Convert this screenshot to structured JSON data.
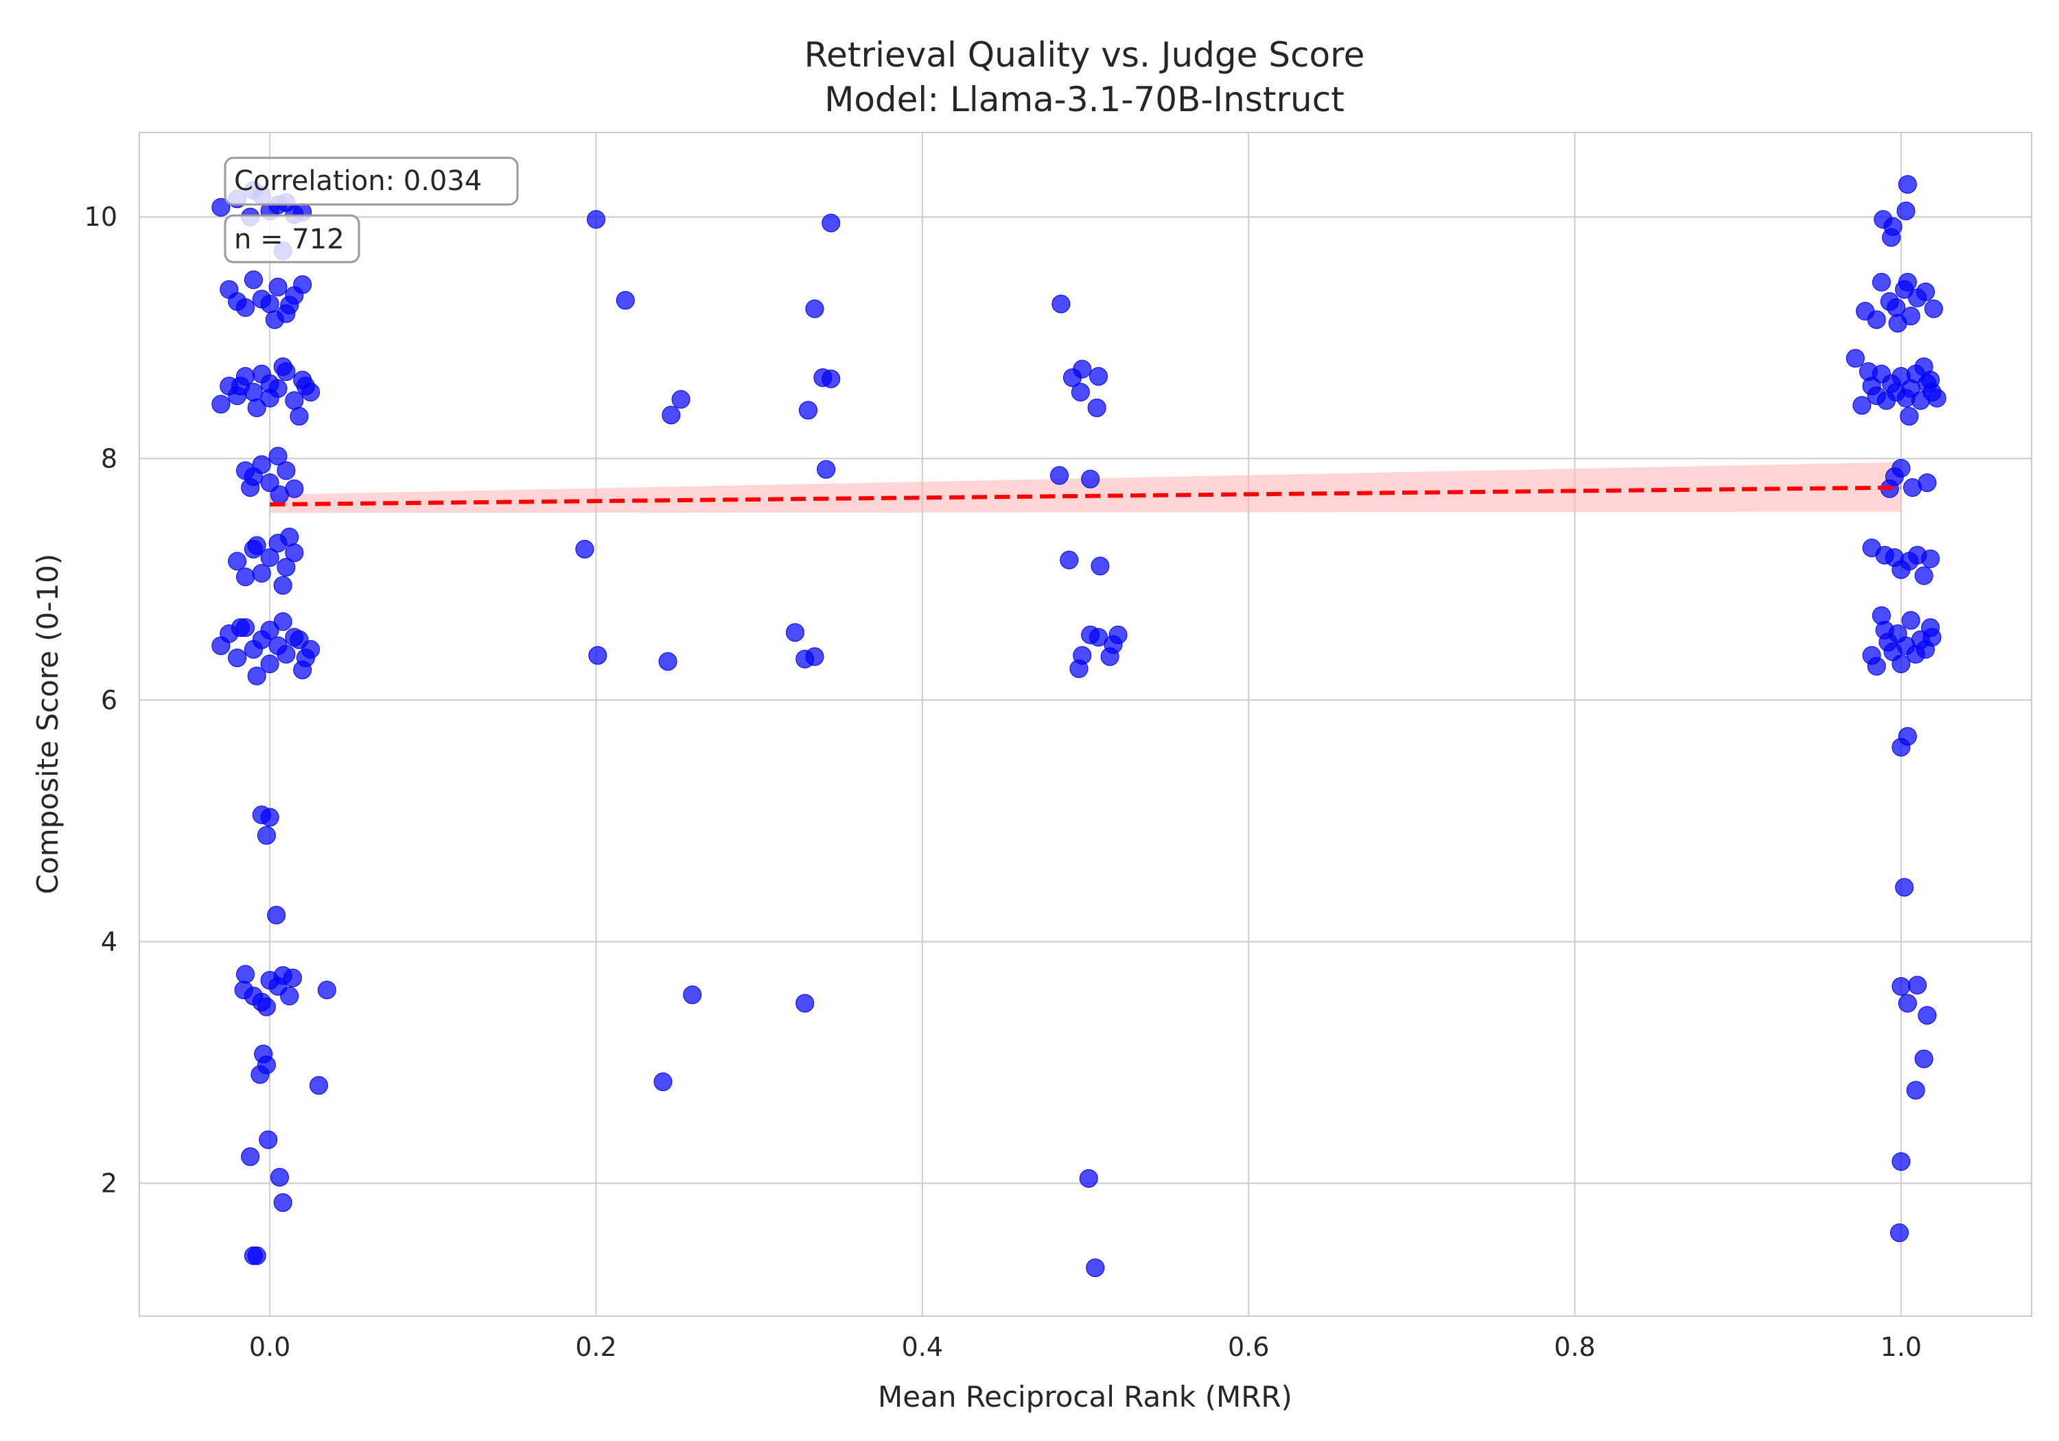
{
  "chart_data": {
    "type": "scatter",
    "title": "Retrieval Quality vs. Judge Score",
    "subtitle": "Model: Llama-3.1-70B-Instruct",
    "xlabel": "Mean Reciprocal Rank (MRR)",
    "ylabel": "Composite Score (0-10)",
    "xlim": [
      -0.08,
      1.08
    ],
    "ylim": [
      0.9,
      10.7
    ],
    "xticks": [
      "0.0",
      "0.2",
      "0.4",
      "0.6",
      "0.8",
      "1.0"
    ],
    "yticks": [
      "2",
      "4",
      "6",
      "8",
      "10"
    ],
    "grid": true,
    "annotations": [
      "Correlation: 0.034",
      "n = 712"
    ],
    "colors": {
      "points": "#0000ff",
      "trend_line": "#ff0000",
      "confidence_band": "#ffb3b3",
      "grid": "#cccccc",
      "text": "#262626"
    },
    "trend": {
      "style": "dashed",
      "x": [
        0.0,
        1.0
      ],
      "y": [
        7.62,
        7.76
      ],
      "ci_lower": [
        7.55,
        7.56
      ],
      "ci_upper": [
        7.7,
        7.97
      ]
    },
    "series": [
      {
        "points": [
          [
            -0.03,
            10.08
          ],
          [
            -0.02,
            10.15
          ],
          [
            -0.01,
            10.22
          ],
          [
            0.0,
            10.05
          ],
          [
            0.01,
            10.12
          ],
          [
            0.015,
            10.02
          ],
          [
            -0.005,
            10.18
          ],
          [
            0.005,
            10.1
          ],
          [
            0.02,
            10.04
          ],
          [
            0.008,
            9.72
          ],
          [
            -0.012,
            10.0
          ],
          [
            -0.025,
            9.4
          ],
          [
            -0.015,
            9.25
          ],
          [
            -0.01,
            9.48
          ],
          [
            -0.005,
            9.32
          ],
          [
            0.0,
            9.28
          ],
          [
            0.005,
            9.42
          ],
          [
            0.01,
            9.2
          ],
          [
            0.015,
            9.35
          ],
          [
            0.02,
            9.44
          ],
          [
            -0.02,
            9.3
          ],
          [
            0.003,
            9.15
          ],
          [
            0.012,
            9.27
          ],
          [
            -0.03,
            8.45
          ],
          [
            -0.025,
            8.6
          ],
          [
            -0.02,
            8.52
          ],
          [
            -0.015,
            8.68
          ],
          [
            -0.01,
            8.55
          ],
          [
            -0.005,
            8.7
          ],
          [
            0.0,
            8.5
          ],
          [
            0.0,
            8.62
          ],
          [
            0.005,
            8.58
          ],
          [
            0.01,
            8.72
          ],
          [
            0.015,
            8.48
          ],
          [
            0.02,
            8.65
          ],
          [
            0.025,
            8.55
          ],
          [
            -0.008,
            8.42
          ],
          [
            0.008,
            8.76
          ],
          [
            0.018,
            8.35
          ],
          [
            -0.018,
            8.6
          ],
          [
            0.022,
            8.6
          ],
          [
            -0.015,
            7.9
          ],
          [
            -0.01,
            7.85
          ],
          [
            -0.005,
            7.95
          ],
          [
            0.0,
            7.8
          ],
          [
            0.005,
            8.02
          ],
          [
            0.01,
            7.9
          ],
          [
            0.015,
            7.75
          ],
          [
            -0.012,
            7.76
          ],
          [
            0.006,
            7.7
          ],
          [
            -0.02,
            7.15
          ],
          [
            -0.01,
            7.25
          ],
          [
            -0.005,
            7.05
          ],
          [
            0.0,
            7.18
          ],
          [
            0.005,
            7.3
          ],
          [
            0.01,
            7.1
          ],
          [
            0.015,
            7.22
          ],
          [
            -0.015,
            7.02
          ],
          [
            0.008,
            6.95
          ],
          [
            0.012,
            7.35
          ],
          [
            -0.008,
            7.28
          ],
          [
            -0.03,
            6.45
          ],
          [
            -0.025,
            6.55
          ],
          [
            -0.02,
            6.35
          ],
          [
            -0.015,
            6.6
          ],
          [
            -0.01,
            6.42
          ],
          [
            -0.005,
            6.5
          ],
          [
            0.0,
            6.3
          ],
          [
            0.0,
            6.58
          ],
          [
            0.005,
            6.45
          ],
          [
            0.01,
            6.38
          ],
          [
            0.015,
            6.52
          ],
          [
            0.02,
            6.25
          ],
          [
            0.025,
            6.42
          ],
          [
            -0.008,
            6.2
          ],
          [
            0.008,
            6.65
          ],
          [
            0.018,
            6.5
          ],
          [
            -0.018,
            6.6
          ],
          [
            0.022,
            6.35
          ],
          [
            -0.005,
            5.05
          ],
          [
            0.0,
            5.03
          ],
          [
            -0.002,
            4.88
          ],
          [
            0.004,
            4.22
          ],
          [
            -0.015,
            3.73
          ],
          [
            -0.016,
            3.6
          ],
          [
            -0.01,
            3.55
          ],
          [
            -0.005,
            3.5
          ],
          [
            0.0,
            3.68
          ],
          [
            0.005,
            3.63
          ],
          [
            0.008,
            3.72
          ],
          [
            0.012,
            3.55
          ],
          [
            0.014,
            3.7
          ],
          [
            0.035,
            3.6
          ],
          [
            -0.002,
            3.46
          ],
          [
            -0.004,
            3.07
          ],
          [
            -0.006,
            2.9
          ],
          [
            -0.002,
            2.98
          ],
          [
            0.03,
            2.81
          ],
          [
            -0.001,
            2.36
          ],
          [
            -0.012,
            2.22
          ],
          [
            0.006,
            2.05
          ],
          [
            0.008,
            1.84
          ],
          [
            -0.008,
            1.4
          ],
          [
            -0.01,
            1.4
          ],
          [
            0.2,
            9.98
          ],
          [
            0.218,
            9.31
          ],
          [
            0.252,
            8.49
          ],
          [
            0.246,
            8.36
          ],
          [
            0.193,
            7.25
          ],
          [
            0.201,
            6.37
          ],
          [
            0.244,
            6.32
          ],
          [
            0.259,
            3.56
          ],
          [
            0.241,
            2.84
          ],
          [
            0.344,
            9.95
          ],
          [
            0.334,
            9.24
          ],
          [
            0.339,
            8.67
          ],
          [
            0.344,
            8.66
          ],
          [
            0.33,
            8.4
          ],
          [
            0.341,
            7.91
          ],
          [
            0.322,
            6.56
          ],
          [
            0.328,
            6.34
          ],
          [
            0.334,
            6.36
          ],
          [
            0.328,
            3.49
          ],
          [
            0.485,
            9.28
          ],
          [
            0.492,
            8.67
          ],
          [
            0.498,
            8.74
          ],
          [
            0.508,
            8.68
          ],
          [
            0.497,
            8.55
          ],
          [
            0.507,
            8.42
          ],
          [
            0.484,
            7.86
          ],
          [
            0.503,
            7.83
          ],
          [
            0.49,
            7.16
          ],
          [
            0.509,
            7.11
          ],
          [
            0.503,
            6.54
          ],
          [
            0.508,
            6.52
          ],
          [
            0.52,
            6.54
          ],
          [
            0.517,
            6.46
          ],
          [
            0.498,
            6.37
          ],
          [
            0.515,
            6.36
          ],
          [
            0.496,
            6.26
          ],
          [
            0.502,
            2.04
          ],
          [
            0.506,
            1.3
          ],
          [
            1.004,
            10.27
          ],
          [
            0.989,
            9.98
          ],
          [
            0.995,
            9.92
          ],
          [
            1.003,
            10.05
          ],
          [
            0.994,
            9.83
          ],
          [
            0.978,
            9.22
          ],
          [
            0.985,
            9.15
          ],
          [
            0.988,
            9.46
          ],
          [
            0.993,
            9.3
          ],
          [
            0.997,
            9.25
          ],
          [
            1.002,
            9.4
          ],
          [
            1.006,
            9.18
          ],
          [
            1.01,
            9.33
          ],
          [
            1.015,
            9.38
          ],
          [
            1.02,
            9.24
          ],
          [
            1.004,
            9.46
          ],
          [
            0.998,
            9.12
          ],
          [
            0.972,
            8.83
          ],
          [
            0.976,
            8.44
          ],
          [
            0.982,
            8.6
          ],
          [
            0.985,
            8.52
          ],
          [
            0.988,
            8.7
          ],
          [
            0.991,
            8.48
          ],
          [
            0.994,
            8.62
          ],
          [
            0.997,
            8.55
          ],
          [
            1.0,
            8.68
          ],
          [
            1.003,
            8.5
          ],
          [
            1.006,
            8.58
          ],
          [
            1.009,
            8.7
          ],
          [
            1.012,
            8.48
          ],
          [
            1.016,
            8.62
          ],
          [
            1.019,
            8.55
          ],
          [
            1.022,
            8.5
          ],
          [
            1.005,
            8.35
          ],
          [
            0.98,
            8.72
          ],
          [
            1.014,
            8.76
          ],
          [
            1.018,
            8.65
          ],
          [
            1.0,
            7.92
          ],
          [
            0.996,
            7.85
          ],
          [
            0.993,
            7.75
          ],
          [
            1.007,
            7.76
          ],
          [
            1.016,
            7.8
          ],
          [
            0.982,
            7.26
          ],
          [
            0.99,
            7.2
          ],
          [
            0.996,
            7.18
          ],
          [
            1.0,
            7.08
          ],
          [
            1.005,
            7.15
          ],
          [
            1.01,
            7.2
          ],
          [
            1.014,
            7.03
          ],
          [
            1.018,
            7.17
          ],
          [
            0.982,
            6.37
          ],
          [
            0.985,
            6.28
          ],
          [
            0.988,
            6.7
          ],
          [
            0.992,
            6.48
          ],
          [
            0.995,
            6.4
          ],
          [
            0.998,
            6.55
          ],
          [
            1.0,
            6.3
          ],
          [
            1.003,
            6.45
          ],
          [
            1.006,
            6.66
          ],
          [
            1.009,
            6.38
          ],
          [
            1.012,
            6.5
          ],
          [
            1.015,
            6.42
          ],
          [
            1.018,
            6.6
          ],
          [
            1.019,
            6.52
          ],
          [
            0.99,
            6.58
          ],
          [
            1.004,
            5.7
          ],
          [
            1.0,
            5.61
          ],
          [
            1.002,
            4.45
          ],
          [
            1.0,
            3.63
          ],
          [
            1.01,
            3.64
          ],
          [
            1.004,
            3.49
          ],
          [
            1.016,
            3.39
          ],
          [
            1.014,
            3.03
          ],
          [
            1.009,
            2.77
          ],
          [
            1.0,
            2.18
          ],
          [
            0.999,
            1.59
          ]
        ]
      }
    ]
  }
}
